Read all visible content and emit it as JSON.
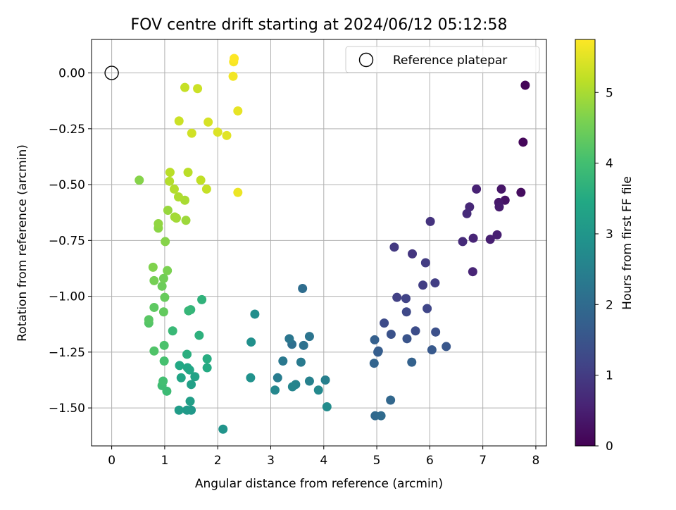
{
  "chart_data": {
    "type": "scatter",
    "title": "FOV centre drift starting at 2024/06/12 05:12:58",
    "xlabel": "Angular distance from reference (arcmin)",
    "ylabel": "Rotation from reference (arcmin)",
    "xlim": [
      -0.38,
      8.2
    ],
    "ylim": [
      -1.67,
      0.15
    ],
    "xticks": [
      0,
      1,
      2,
      3,
      4,
      5,
      6,
      7,
      8
    ],
    "yticks": [
      0.0,
      -0.25,
      -0.5,
      -0.75,
      -1.0,
      -1.25,
      -1.5
    ],
    "grid": true,
    "legend": {
      "placement": "top-right",
      "entries": [
        "Reference platepar"
      ]
    },
    "reference_point": {
      "x": 0,
      "y": 0
    },
    "colorbar": {
      "label": "Hours from first FF file",
      "range": [
        0,
        5.75
      ],
      "ticks": [
        0,
        1,
        2,
        3,
        4,
        5
      ],
      "colormap": "viridis"
    },
    "points": [
      {
        "x": 7.8,
        "y": -0.055,
        "c": 0.05
      },
      {
        "x": 7.76,
        "y": -0.31,
        "c": 0.1
      },
      {
        "x": 7.72,
        "y": -0.535,
        "c": 0.2
      },
      {
        "x": 7.42,
        "y": -0.57,
        "c": 0.3
      },
      {
        "x": 7.35,
        "y": -0.52,
        "c": 0.35
      },
      {
        "x": 7.3,
        "y": -0.58,
        "c": 0.4
      },
      {
        "x": 7.31,
        "y": -0.6,
        "c": 0.45
      },
      {
        "x": 7.27,
        "y": -0.725,
        "c": 0.5
      },
      {
        "x": 7.14,
        "y": -0.745,
        "c": 0.5
      },
      {
        "x": 6.88,
        "y": -0.52,
        "c": 0.55
      },
      {
        "x": 6.82,
        "y": -0.74,
        "c": 0.6
      },
      {
        "x": 6.81,
        "y": -0.89,
        "c": 0.6
      },
      {
        "x": 6.75,
        "y": -0.6,
        "c": 0.65
      },
      {
        "x": 6.7,
        "y": -0.63,
        "c": 0.7
      },
      {
        "x": 6.62,
        "y": -0.755,
        "c": 0.7
      },
      {
        "x": 6.01,
        "y": -0.665,
        "c": 0.85
      },
      {
        "x": 5.67,
        "y": -0.81,
        "c": 0.9
      },
      {
        "x": 5.33,
        "y": -0.78,
        "c": 0.95
      },
      {
        "x": 5.92,
        "y": -0.85,
        "c": 1.0
      },
      {
        "x": 5.87,
        "y": -0.95,
        "c": 1.05
      },
      {
        "x": 6.1,
        "y": -0.94,
        "c": 1.05
      },
      {
        "x": 5.38,
        "y": -1.005,
        "c": 1.1
      },
      {
        "x": 5.55,
        "y": -1.01,
        "c": 1.15
      },
      {
        "x": 5.95,
        "y": -1.055,
        "c": 1.2
      },
      {
        "x": 5.56,
        "y": -1.07,
        "c": 1.25
      },
      {
        "x": 5.14,
        "y": -1.12,
        "c": 1.3
      },
      {
        "x": 5.73,
        "y": -1.155,
        "c": 1.35
      },
      {
        "x": 6.11,
        "y": -1.16,
        "c": 1.4
      },
      {
        "x": 5.27,
        "y": -1.17,
        "c": 1.45
      },
      {
        "x": 5.57,
        "y": -1.19,
        "c": 1.5
      },
      {
        "x": 6.31,
        "y": -1.225,
        "c": 1.55
      },
      {
        "x": 6.04,
        "y": -1.24,
        "c": 1.6
      },
      {
        "x": 5.03,
        "y": -1.245,
        "c": 1.65
      },
      {
        "x": 5.02,
        "y": -1.25,
        "c": 1.7
      },
      {
        "x": 4.96,
        "y": -1.195,
        "c": 1.75
      },
      {
        "x": 5.66,
        "y": -1.295,
        "c": 1.8
      },
      {
        "x": 4.95,
        "y": -1.3,
        "c": 1.85
      },
      {
        "x": 5.26,
        "y": -1.465,
        "c": 1.9
      },
      {
        "x": 4.97,
        "y": -1.535,
        "c": 1.95
      },
      {
        "x": 5.08,
        "y": -1.535,
        "c": 2.0
      },
      {
        "x": 3.6,
        "y": -0.965,
        "c": 2.05
      },
      {
        "x": 3.4,
        "y": -1.215,
        "c": 2.1
      },
      {
        "x": 3.62,
        "y": -1.22,
        "c": 2.15
      },
      {
        "x": 3.73,
        "y": -1.18,
        "c": 2.2
      },
      {
        "x": 3.35,
        "y": -1.19,
        "c": 2.25
      },
      {
        "x": 3.23,
        "y": -1.29,
        "c": 2.3
      },
      {
        "x": 3.57,
        "y": -1.295,
        "c": 2.35
      },
      {
        "x": 3.13,
        "y": -1.365,
        "c": 2.4
      },
      {
        "x": 4.03,
        "y": -1.375,
        "c": 2.45
      },
      {
        "x": 3.73,
        "y": -1.38,
        "c": 2.5
      },
      {
        "x": 3.47,
        "y": -1.395,
        "c": 2.55
      },
      {
        "x": 3.41,
        "y": -1.405,
        "c": 2.6
      },
      {
        "x": 3.08,
        "y": -1.42,
        "c": 2.65
      },
      {
        "x": 3.9,
        "y": -1.42,
        "c": 2.7
      },
      {
        "x": 4.06,
        "y": -1.495,
        "c": 2.75
      },
      {
        "x": 2.7,
        "y": -1.08,
        "c": 2.8
      },
      {
        "x": 2.63,
        "y": -1.205,
        "c": 2.85
      },
      {
        "x": 2.62,
        "y": -1.365,
        "c": 2.9
      },
      {
        "x": 2.1,
        "y": -1.595,
        "c": 2.95
      },
      {
        "x": 1.5,
        "y": -1.51,
        "c": 3.05
      },
      {
        "x": 1.42,
        "y": -1.51,
        "c": 3.1
      },
      {
        "x": 1.27,
        "y": -1.51,
        "c": 3.15
      },
      {
        "x": 1.48,
        "y": -1.47,
        "c": 3.2
      },
      {
        "x": 1.5,
        "y": -1.395,
        "c": 3.25
      },
      {
        "x": 1.57,
        "y": -1.36,
        "c": 3.3
      },
      {
        "x": 1.31,
        "y": -1.365,
        "c": 3.35
      },
      {
        "x": 1.47,
        "y": -1.33,
        "c": 3.4
      },
      {
        "x": 1.43,
        "y": -1.32,
        "c": 3.4
      },
      {
        "x": 1.28,
        "y": -1.31,
        "c": 3.45
      },
      {
        "x": 1.8,
        "y": -1.32,
        "c": 3.5
      },
      {
        "x": 1.8,
        "y": -1.28,
        "c": 3.55
      },
      {
        "x": 1.42,
        "y": -1.26,
        "c": 3.6
      },
      {
        "x": 1.65,
        "y": -1.175,
        "c": 3.65
      },
      {
        "x": 1.7,
        "y": -1.015,
        "c": 3.7
      },
      {
        "x": 1.49,
        "y": -1.06,
        "c": 3.75
      },
      {
        "x": 1.45,
        "y": -1.065,
        "c": 3.8
      },
      {
        "x": 1.15,
        "y": -1.155,
        "c": 3.85
      },
      {
        "x": 1.04,
        "y": -1.425,
        "c": 3.9
      },
      {
        "x": 0.95,
        "y": -1.4,
        "c": 3.95
      },
      {
        "x": 0.97,
        "y": -1.38,
        "c": 4.0
      },
      {
        "x": 0.99,
        "y": -1.29,
        "c": 4.05
      },
      {
        "x": 0.99,
        "y": -1.22,
        "c": 4.1
      },
      {
        "x": 0.8,
        "y": -1.245,
        "c": 4.15
      },
      {
        "x": 0.7,
        "y": -1.12,
        "c": 4.2
      },
      {
        "x": 0.7,
        "y": -1.105,
        "c": 4.25
      },
      {
        "x": 0.8,
        "y": -1.05,
        "c": 4.3
      },
      {
        "x": 0.98,
        "y": -1.07,
        "c": 4.35
      },
      {
        "x": 1.0,
        "y": -1.005,
        "c": 4.4
      },
      {
        "x": 0.95,
        "y": -0.955,
        "c": 4.45
      },
      {
        "x": 0.98,
        "y": -0.92,
        "c": 4.5
      },
      {
        "x": 0.8,
        "y": -0.93,
        "c": 4.55
      },
      {
        "x": 1.05,
        "y": -0.885,
        "c": 4.6
      },
      {
        "x": 0.78,
        "y": -0.87,
        "c": 4.65
      },
      {
        "x": 1.01,
        "y": -0.755,
        "c": 4.7
      },
      {
        "x": 0.52,
        "y": -0.48,
        "c": 4.7
      },
      {
        "x": 0.88,
        "y": -0.695,
        "c": 4.75
      },
      {
        "x": 0.88,
        "y": -0.675,
        "c": 4.8
      },
      {
        "x": 1.06,
        "y": -0.615,
        "c": 4.85
      },
      {
        "x": 1.4,
        "y": -0.66,
        "c": 4.9
      },
      {
        "x": 1.19,
        "y": -0.645,
        "c": 4.95
      },
      {
        "x": 1.22,
        "y": -0.65,
        "c": 4.95
      },
      {
        "x": 1.38,
        "y": -0.57,
        "c": 5.0
      },
      {
        "x": 1.26,
        "y": -0.555,
        "c": 5.05
      },
      {
        "x": 1.18,
        "y": -0.52,
        "c": 5.1
      },
      {
        "x": 1.09,
        "y": -0.485,
        "c": 5.1
      },
      {
        "x": 1.1,
        "y": -0.445,
        "c": 5.15
      },
      {
        "x": 1.44,
        "y": -0.445,
        "c": 5.15
      },
      {
        "x": 1.68,
        "y": -0.48,
        "c": 5.2
      },
      {
        "x": 1.79,
        "y": -0.52,
        "c": 5.25
      },
      {
        "x": 1.38,
        "y": -0.065,
        "c": 5.25
      },
      {
        "x": 1.62,
        "y": -0.07,
        "c": 5.3
      },
      {
        "x": 1.27,
        "y": -0.215,
        "c": 5.3
      },
      {
        "x": 1.51,
        "y": -0.27,
        "c": 5.35
      },
      {
        "x": 1.82,
        "y": -0.22,
        "c": 5.4
      },
      {
        "x": 2.0,
        "y": -0.265,
        "c": 5.45
      },
      {
        "x": 2.17,
        "y": -0.28,
        "c": 5.5
      },
      {
        "x": 2.38,
        "y": -0.17,
        "c": 5.55
      },
      {
        "x": 2.38,
        "y": -0.535,
        "c": 5.6
      },
      {
        "x": 2.29,
        "y": -0.015,
        "c": 5.65
      },
      {
        "x": 2.3,
        "y": 0.05,
        "c": 5.7
      },
      {
        "x": 2.31,
        "y": 0.065,
        "c": 5.75
      }
    ]
  }
}
